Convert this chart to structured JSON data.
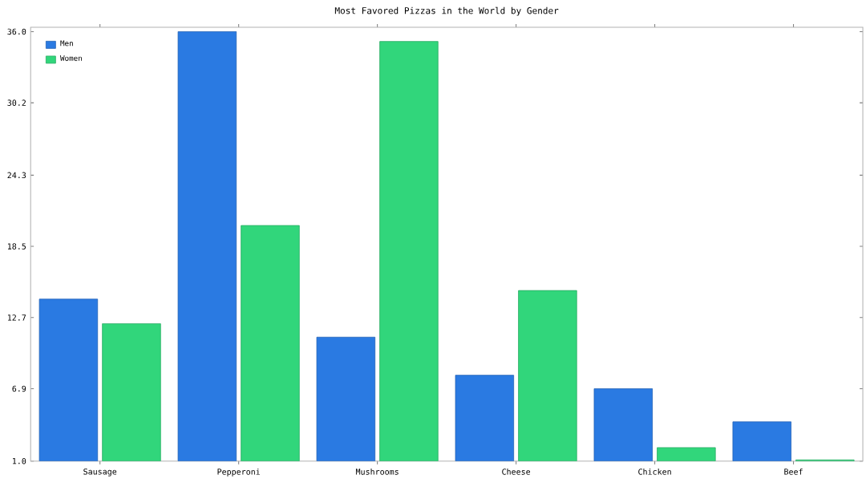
{
  "chart_data": {
    "type": "bar",
    "title": "Most Favored Pizzas in the World by Gender",
    "categories": [
      "Sausage",
      "Pepperoni",
      "Mushrooms",
      "Cheese",
      "Chicken",
      "Beef"
    ],
    "series": [
      {
        "name": "Men",
        "color": "#2a7ae2",
        "values": [
          14.2,
          36.0,
          11.1,
          8.0,
          6.9,
          4.2
        ]
      },
      {
        "name": "Women",
        "color": "#31d67b",
        "values": [
          12.2,
          20.2,
          35.2,
          14.9,
          2.1,
          1.1
        ]
      }
    ],
    "ylim": [
      1.0,
      36.0
    ],
    "yticks": [
      {
        "value": 1.0,
        "label": "1.0"
      },
      {
        "value": 6.9,
        "label": "6.9"
      },
      {
        "value": 12.7,
        "label": "12.7"
      },
      {
        "value": 18.5,
        "label": "18.5"
      },
      {
        "value": 24.3,
        "label": "24.3"
      },
      {
        "value": 30.2,
        "label": "30.2"
      },
      {
        "value": 36.0,
        "label": "36.0"
      }
    ],
    "grid": false,
    "legend": "top left"
  }
}
